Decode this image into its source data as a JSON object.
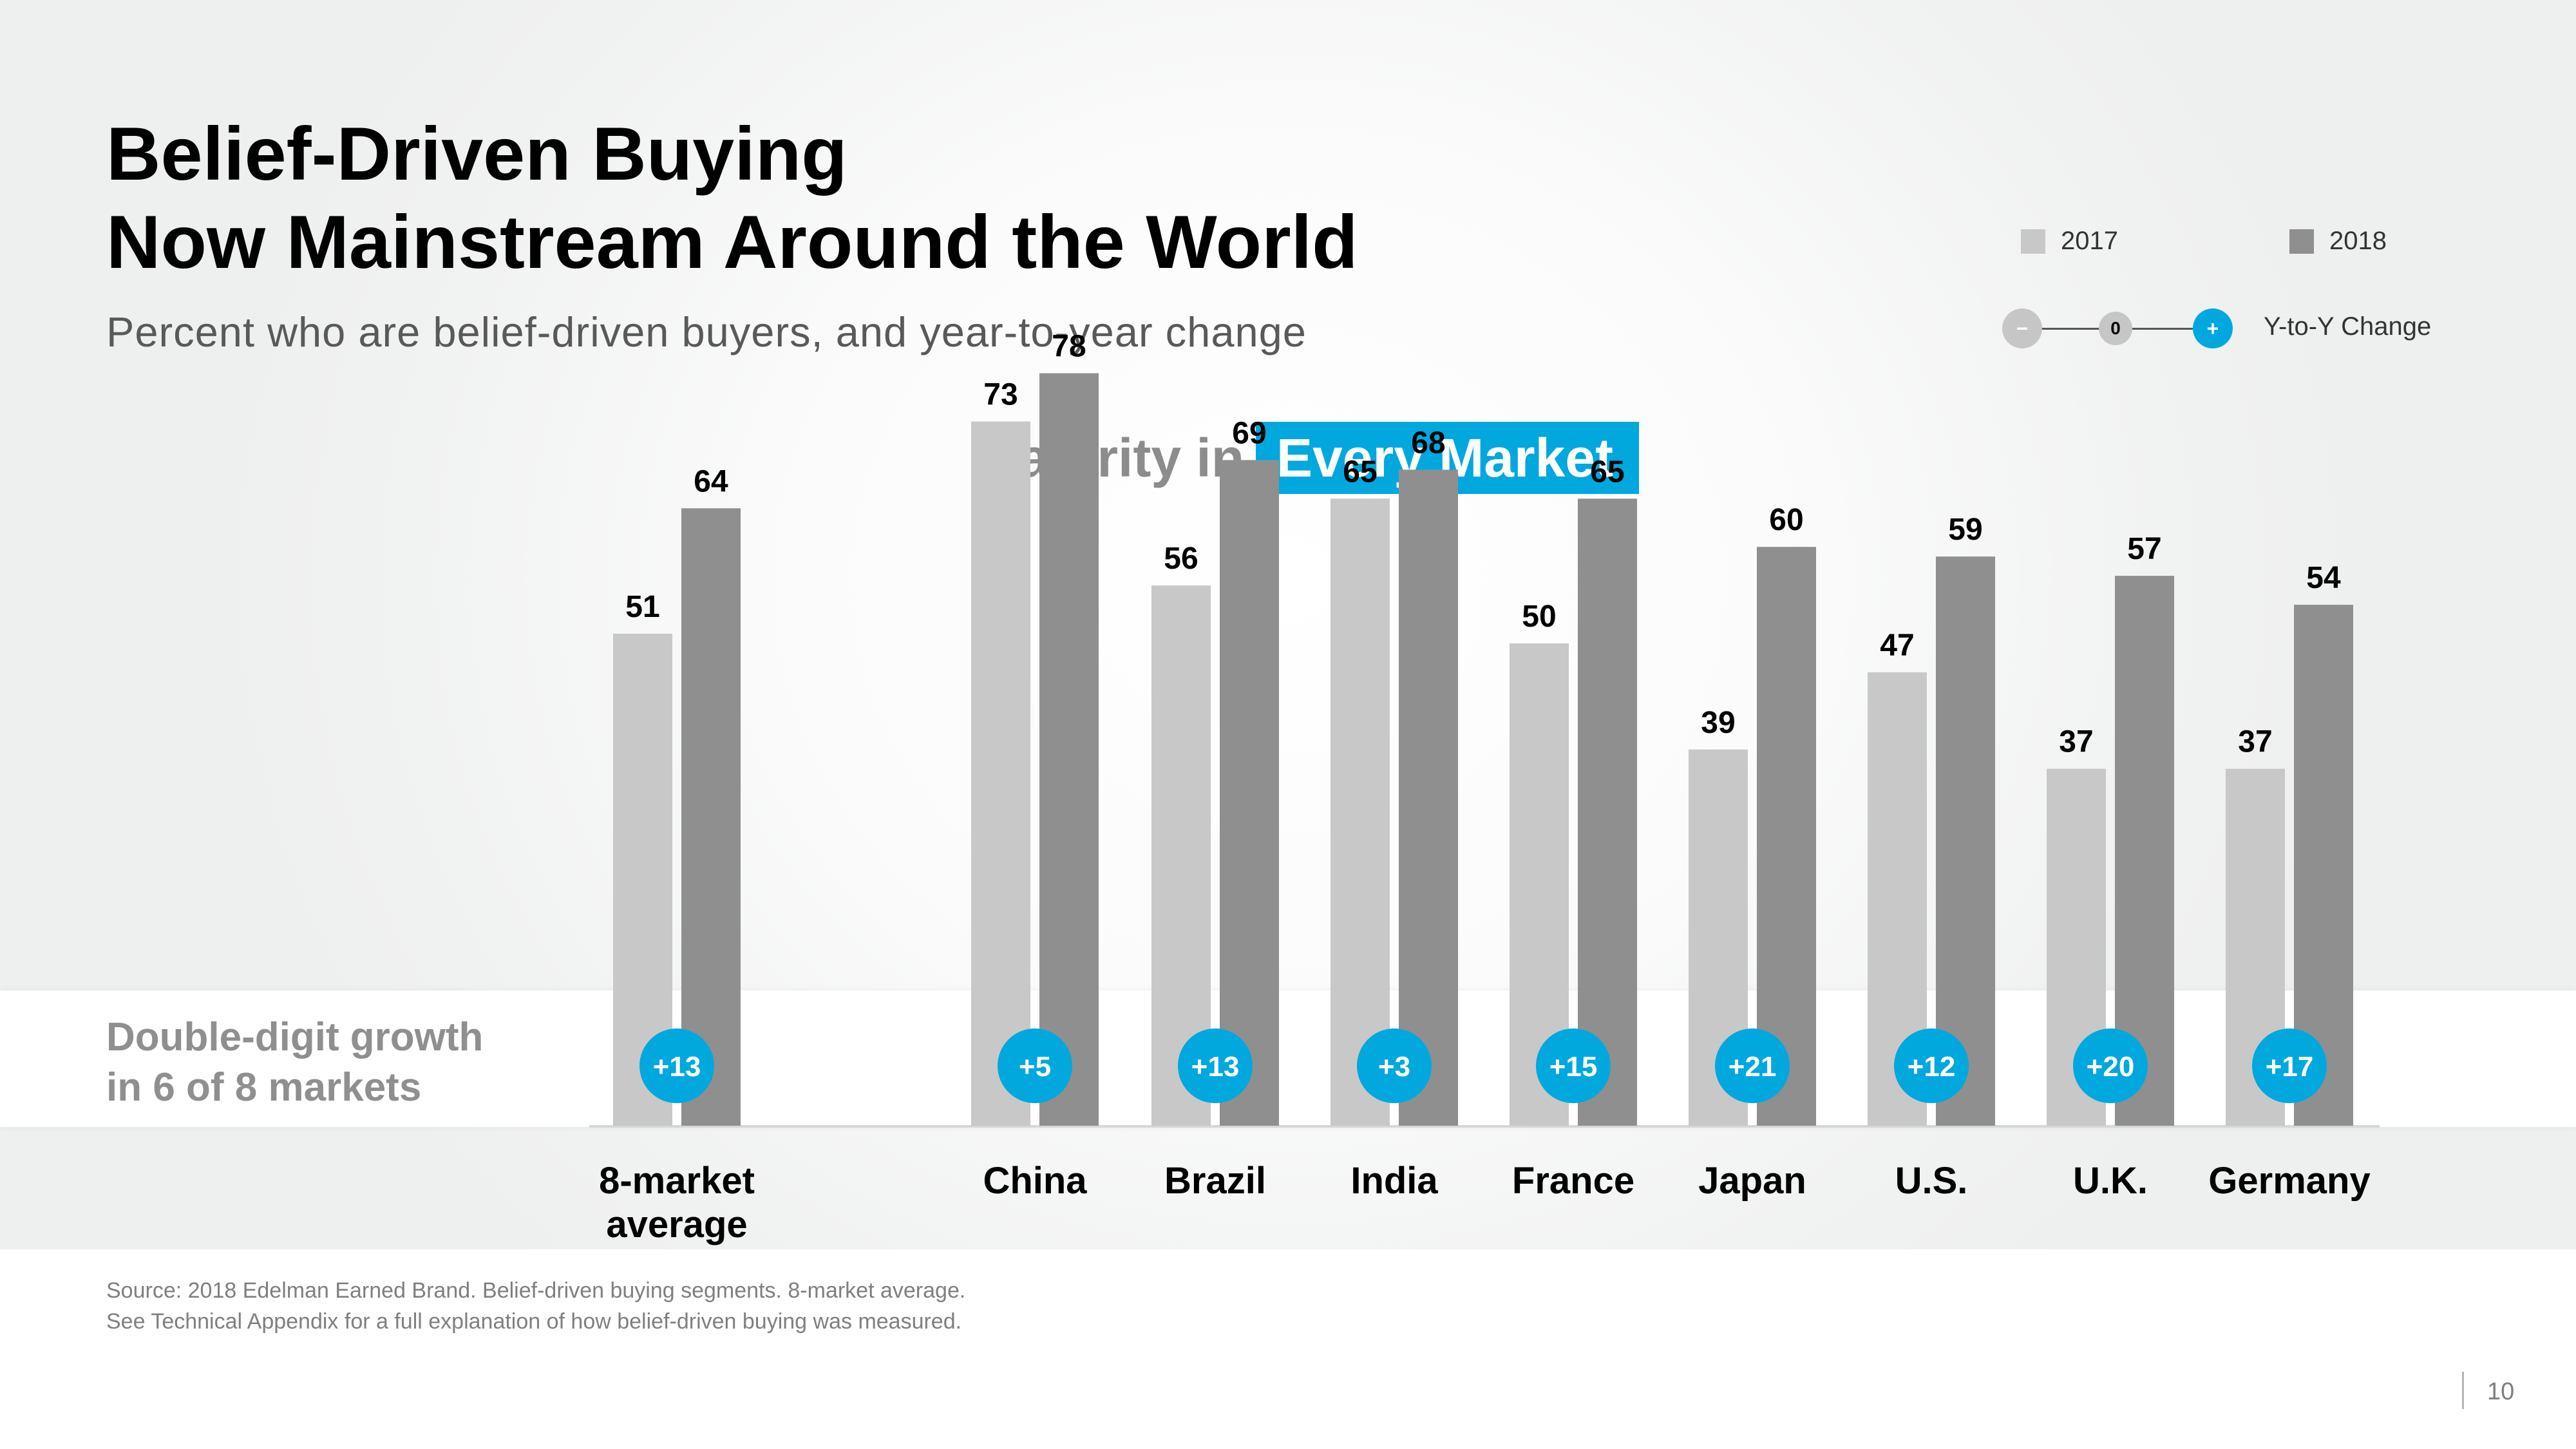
{
  "title_line1": "Belief-Driven Buying",
  "title_line2": "Now Mainstream Around the World",
  "subtitle": "Percent who are belief-driven buyers, and year-to-year change",
  "legend": {
    "y2017": "2017",
    "y2018": "2018",
    "minus": "−",
    "zero": "0",
    "plus": "+",
    "yoy_label": "Y-to-Y Change"
  },
  "majority": {
    "prefix": "Majority in",
    "highlight": "Every Market"
  },
  "band": {
    "line1": "Double-digit  growth",
    "line2": " in 6 of 8 markets"
  },
  "source": {
    "line1": "Source: 2018 Edelman Earned Brand. Belief-driven buying segments. 8-market average.",
    "line2": "See Technical Appendix for a full explanation of how belief-driven buying was measured."
  },
  "page_number": "10",
  "colors": {
    "bar2017": "#c8c8c8",
    "bar2018": "#8f8f8f",
    "accent": "#00a8de",
    "neutral": "#c6c6c6"
  },
  "chart_data": {
    "type": "bar",
    "title": "Majority in Every Market",
    "categories": [
      "8-market\naverage",
      "China",
      "Brazil",
      "India",
      "France",
      "Japan",
      "U.S.",
      "U.K.",
      "Germany"
    ],
    "series": [
      {
        "name": "2017",
        "values": [
          51,
          73,
          56,
          65,
          50,
          39,
          47,
          37,
          37
        ]
      },
      {
        "name": "2018",
        "values": [
          64,
          78,
          69,
          68,
          65,
          60,
          59,
          57,
          54
        ]
      }
    ],
    "change_labels": [
      "+13",
      "+5",
      "+13",
      "+3",
      "+15",
      "+21",
      "+12",
      "+20",
      "+17"
    ],
    "ylim": [
      0,
      100
    ],
    "xlabel": "",
    "ylabel": "",
    "grid": false
  }
}
